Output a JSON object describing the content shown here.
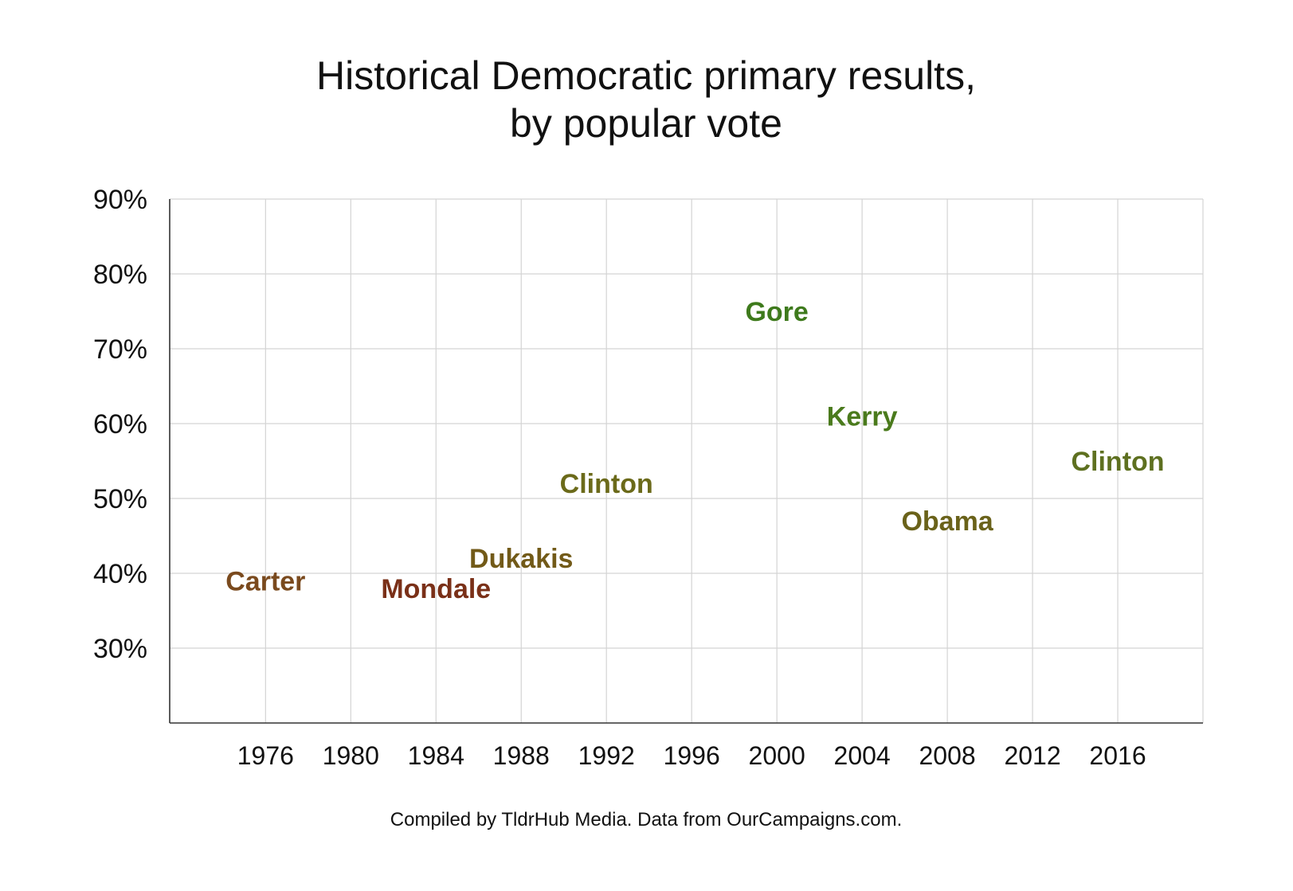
{
  "chart_data": {
    "type": "scatter",
    "title_lines": [
      "Historical Democratic primary results,",
      "by popular vote"
    ],
    "source": "Compiled by TldrHub Media. Data from OurCampaigns.com.",
    "xlabel": "",
    "ylabel": "",
    "x_ticks": [
      1976,
      1980,
      1984,
      1988,
      1992,
      1996,
      2000,
      2004,
      2008,
      2012,
      2016
    ],
    "x_tick_labels": [
      "1976",
      "1980",
      "1984",
      "1988",
      "1992",
      "1996",
      "2000",
      "2004",
      "2008",
      "2012",
      "2016"
    ],
    "xlim": [
      1971.5,
      2020
    ],
    "y_ticks": [
      0.3,
      0.4,
      0.5,
      0.6,
      0.7,
      0.8,
      0.9
    ],
    "y_tick_labels": [
      "30%",
      "40%",
      "50%",
      "60%",
      "70%",
      "80%",
      "90%"
    ],
    "ylim": [
      0.2,
      0.9
    ],
    "grid": true,
    "points": [
      {
        "label": "Carter",
        "x": 1976,
        "y": 0.39,
        "color": "#7a4a1e"
      },
      {
        "label": "Mondale",
        "x": 1984,
        "y": 0.38,
        "color": "#7a3018"
      },
      {
        "label": "Dukakis",
        "x": 1988,
        "y": 0.42,
        "color": "#725a18"
      },
      {
        "label": "Clinton",
        "x": 1992,
        "y": 0.52,
        "color": "#6b6a1a"
      },
      {
        "label": "Gore",
        "x": 2000,
        "y": 0.75,
        "color": "#3e7a1c"
      },
      {
        "label": "Kerry",
        "x": 2004,
        "y": 0.61,
        "color": "#4a7a1c"
      },
      {
        "label": "Obama",
        "x": 2008,
        "y": 0.47,
        "color": "#6a621a"
      },
      {
        "label": "Clinton",
        "x": 2016,
        "y": 0.55,
        "color": "#5e7020"
      }
    ]
  }
}
